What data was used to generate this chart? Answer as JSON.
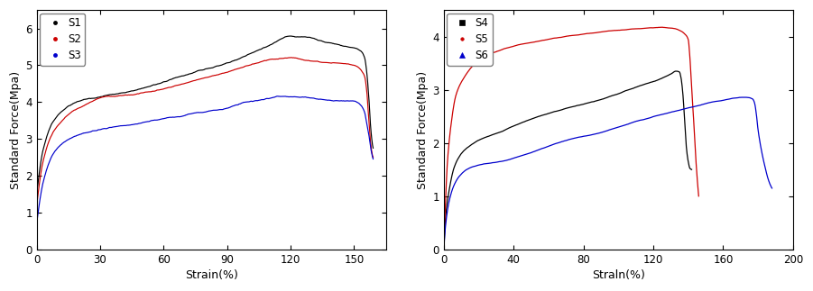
{
  "left": {
    "xlabel": "Strain(%)",
    "ylabel": "Standard Force(Mpa)",
    "xlim": [
      0,
      165
    ],
    "ylim": [
      0,
      6.5
    ],
    "xticks": [
      0,
      30,
      60,
      90,
      120,
      150
    ],
    "yticks": [
      0,
      1,
      2,
      3,
      4,
      5,
      6
    ],
    "legend": [
      "S1",
      "S2",
      "S3"
    ],
    "colors": [
      "black",
      "#cc0000",
      "#0000cc"
    ],
    "S1": {
      "x": [
        0,
        3,
        8,
        15,
        22,
        30,
        45,
        60,
        75,
        90,
        100,
        110,
        115,
        120,
        125,
        130,
        135,
        140,
        145,
        150,
        153,
        155,
        156,
        157,
        158,
        159
      ],
      "y": [
        1.5,
        2.7,
        3.5,
        3.9,
        4.05,
        4.15,
        4.3,
        4.55,
        4.8,
        5.05,
        5.3,
        5.55,
        5.7,
        5.8,
        5.78,
        5.73,
        5.65,
        5.58,
        5.52,
        5.48,
        5.4,
        5.2,
        4.8,
        4.1,
        3.2,
        2.75
      ]
    },
    "S2": {
      "x": [
        0,
        3,
        8,
        15,
        22,
        30,
        45,
        60,
        75,
        90,
        100,
        110,
        120,
        130,
        140,
        150,
        153,
        155,
        156,
        157,
        158,
        159
      ],
      "y": [
        1.2,
        2.4,
        3.2,
        3.65,
        3.9,
        4.1,
        4.2,
        4.35,
        4.6,
        4.82,
        5.0,
        5.15,
        5.2,
        5.12,
        5.07,
        5.0,
        4.9,
        4.7,
        4.3,
        3.5,
        2.8,
        2.5
      ]
    },
    "S3": {
      "x": [
        0,
        3,
        8,
        15,
        22,
        30,
        45,
        60,
        75,
        90,
        100,
        110,
        115,
        120,
        130,
        140,
        150,
        153,
        155,
        156,
        157,
        158,
        159
      ],
      "y": [
        0.7,
        1.8,
        2.6,
        3.0,
        3.15,
        3.25,
        3.4,
        3.55,
        3.7,
        3.85,
        4.0,
        4.1,
        4.15,
        4.15,
        4.1,
        4.05,
        4.0,
        3.9,
        3.7,
        3.4,
        3.1,
        2.7,
        2.45
      ]
    }
  },
  "right": {
    "xlabel": "Straln(%)",
    "ylabel": "Standard Force(Mpa)",
    "xlim": [
      0,
      200
    ],
    "ylim": [
      0,
      4.5
    ],
    "xticks": [
      0,
      40,
      80,
      120,
      160,
      200
    ],
    "yticks": [
      0,
      1,
      2,
      3,
      4
    ],
    "legend": [
      "S4",
      "S5",
      "S6"
    ],
    "colors": [
      "black",
      "#cc0000",
      "#0000cc"
    ],
    "S4": {
      "x": [
        0,
        1,
        3,
        6,
        10,
        15,
        20,
        30,
        50,
        70,
        90,
        110,
        125,
        130,
        133,
        135,
        136,
        137,
        138,
        139,
        140,
        141,
        142
      ],
      "y": [
        0.0,
        0.6,
        1.1,
        1.55,
        1.8,
        1.95,
        2.05,
        2.18,
        2.45,
        2.65,
        2.82,
        3.05,
        3.22,
        3.3,
        3.35,
        3.33,
        3.2,
        2.9,
        2.4,
        1.9,
        1.65,
        1.52,
        1.5
      ]
    },
    "S5": {
      "x": [
        0,
        1,
        2,
        4,
        7,
        12,
        18,
        25,
        40,
        60,
        80,
        100,
        115,
        125,
        132,
        136,
        138,
        140,
        141,
        142,
        143,
        144,
        145,
        146
      ],
      "y": [
        0.0,
        0.9,
        1.6,
        2.3,
        2.9,
        3.25,
        3.5,
        3.65,
        3.82,
        3.95,
        4.05,
        4.12,
        4.16,
        4.17,
        4.15,
        4.1,
        4.05,
        3.95,
        3.6,
        3.0,
        2.5,
        1.9,
        1.4,
        1.0
      ]
    },
    "S6": {
      "x": [
        0,
        1,
        3,
        6,
        10,
        14,
        18,
        22,
        28,
        35,
        50,
        70,
        90,
        110,
        130,
        145,
        155,
        162,
        168,
        172,
        175,
        177,
        178,
        179,
        180,
        182,
        184,
        186,
        188
      ],
      "y": [
        0.0,
        0.45,
        0.9,
        1.22,
        1.42,
        1.52,
        1.57,
        1.6,
        1.63,
        1.67,
        1.82,
        2.05,
        2.2,
        2.4,
        2.58,
        2.7,
        2.78,
        2.82,
        2.85,
        2.86,
        2.85,
        2.82,
        2.75,
        2.55,
        2.25,
        1.85,
        1.55,
        1.3,
        1.15
      ]
    }
  },
  "fig_width": 9.01,
  "fig_height": 3.23,
  "dpi": 100
}
